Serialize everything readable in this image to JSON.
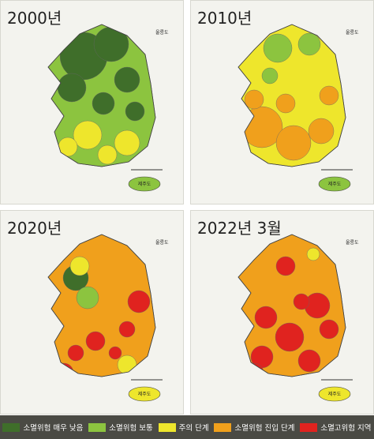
{
  "panels": [
    {
      "title": "2000년",
      "island_label": "울릉도",
      "jeju_label": "제주도"
    },
    {
      "title": "2010년",
      "island_label": "울릉도",
      "jeju_label": "제주도"
    },
    {
      "title": "2020년",
      "island_label": "울릉도",
      "jeju_label": "제주도"
    },
    {
      "title": "2022년 3월",
      "island_label": "울릉도",
      "jeju_label": "제주도"
    }
  ],
  "legend": [
    {
      "label": "소멸위험 매우 낮음",
      "color": "#3f6e2a"
    },
    {
      "label": "소멸위험 보통",
      "color": "#8cc43f"
    },
    {
      "label": "주의 단계",
      "color": "#eee62c"
    },
    {
      "label": "소멸위험 진입 단계",
      "color": "#f0a01c"
    },
    {
      "label": "소멸고위험 지역",
      "color": "#e0231f"
    }
  ]
}
